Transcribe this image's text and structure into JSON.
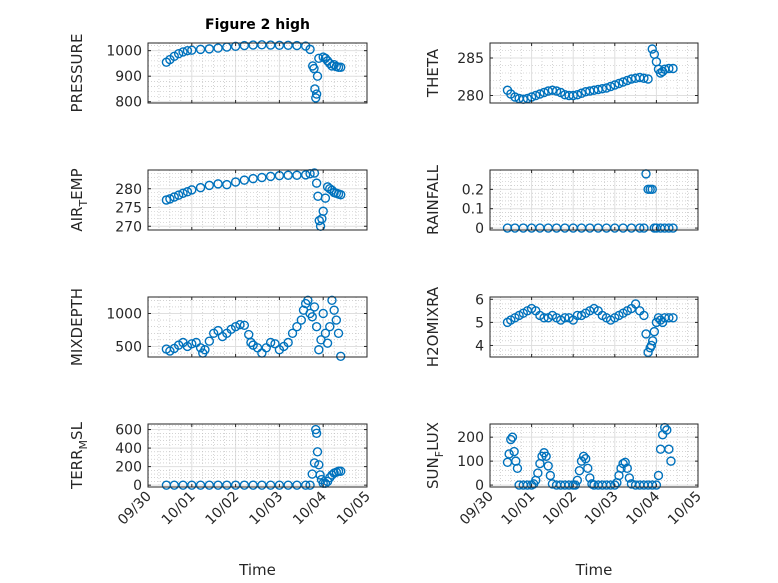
{
  "figure": {
    "title": "Figure 2 high"
  },
  "colors": {
    "series": "#0072BD",
    "axis": "#262626",
    "grid": "#dfdfdf"
  },
  "chart_data": [
    {
      "type": "scatter",
      "ylabel": "PRESSURE",
      "title": "Figure 2 high",
      "ylim": [
        795,
        1030
      ],
      "yticks": [
        800,
        900,
        1000
      ],
      "xlim": [
        0,
        5
      ],
      "xticks": [
        "09/30",
        "10/01",
        "10/02",
        "10/03",
        "10/04",
        "10/05"
      ],
      "show_xticklabels": false,
      "grid": true,
      "x": [
        0.42,
        0.5,
        0.6,
        0.7,
        0.8,
        0.9,
        1.0,
        1.2,
        1.4,
        1.6,
        1.8,
        2.0,
        2.2,
        2.4,
        2.6,
        2.8,
        3.0,
        3.2,
        3.4,
        3.6,
        3.7,
        3.76,
        3.79,
        3.81,
        3.83,
        3.85,
        3.87,
        3.9,
        4.0,
        4.05,
        4.1,
        4.15,
        4.2,
        4.25,
        4.3,
        4.35,
        4.4
      ],
      "y": [
        955,
        965,
        978,
        988,
        995,
        1000,
        1002,
        1005,
        1007,
        1010,
        1014,
        1017,
        1020,
        1022,
        1023,
        1022,
        1021,
        1021,
        1020,
        1018,
        1005,
        940,
        930,
        850,
        815,
        830,
        900,
        970,
        975,
        970,
        960,
        950,
        940,
        945,
        938,
        935,
        935
      ]
    },
    {
      "type": "scatter",
      "ylabel": "THETA",
      "ylim": [
        279,
        287
      ],
      "yticks": [
        280,
        285
      ],
      "xlim": [
        0,
        5
      ],
      "xticks": [
        "09/30",
        "10/01",
        "10/02",
        "10/03",
        "10/04",
        "10/05"
      ],
      "show_xticklabels": false,
      "grid": true,
      "x": [
        0.42,
        0.5,
        0.6,
        0.7,
        0.8,
        0.9,
        1.0,
        1.1,
        1.2,
        1.3,
        1.4,
        1.5,
        1.6,
        1.7,
        1.8,
        1.9,
        2.0,
        2.1,
        2.2,
        2.3,
        2.4,
        2.5,
        2.6,
        2.7,
        2.8,
        2.9,
        3.0,
        3.1,
        3.2,
        3.3,
        3.4,
        3.5,
        3.6,
        3.7,
        3.8,
        3.9,
        3.95,
        4.0,
        4.05,
        4.1,
        4.15,
        4.2,
        4.3,
        4.4
      ],
      "y": [
        280.7,
        280.2,
        279.8,
        279.6,
        279.5,
        279.6,
        279.8,
        280.0,
        280.2,
        280.4,
        280.6,
        280.7,
        280.6,
        280.4,
        280.1,
        280.0,
        280.0,
        280.1,
        280.3,
        280.5,
        280.6,
        280.7,
        280.8,
        280.9,
        281.0,
        281.2,
        281.4,
        281.6,
        281.8,
        282.0,
        282.2,
        282.3,
        282.4,
        282.3,
        282.2,
        286.2,
        285.5,
        284.5,
        283.5,
        283.0,
        283.2,
        283.5,
        283.6,
        283.6
      ]
    },
    {
      "type": "scatter",
      "ylabel": "AIR_TEMP",
      "ylim": [
        269,
        285
      ],
      "yticks": [
        270,
        275,
        280
      ],
      "xlim": [
        0,
        5
      ],
      "xticks": [
        "09/30",
        "10/01",
        "10/02",
        "10/03",
        "10/04",
        "10/05"
      ],
      "show_xticklabels": false,
      "grid": true,
      "x": [
        0.42,
        0.5,
        0.6,
        0.7,
        0.8,
        0.9,
        1.0,
        1.2,
        1.4,
        1.6,
        1.8,
        2.0,
        2.2,
        2.4,
        2.6,
        2.8,
        3.0,
        3.2,
        3.4,
        3.6,
        3.7,
        3.8,
        3.85,
        3.88,
        3.91,
        3.94,
        3.97,
        4.0,
        4.05,
        4.1,
        4.15,
        4.2,
        4.25,
        4.3,
        4.35,
        4.4
      ],
      "y": [
        277.0,
        277.3,
        277.8,
        278.3,
        278.8,
        279.2,
        279.7,
        280.3,
        280.9,
        281.3,
        281.1,
        281.8,
        282.3,
        282.7,
        283.0,
        283.3,
        283.5,
        283.6,
        283.6,
        283.7,
        284.0,
        284.2,
        281.5,
        278.0,
        271.5,
        270.0,
        272.0,
        274.0,
        277.5,
        280.5,
        280.0,
        279.6,
        279.0,
        278.8,
        278.6,
        278.4
      ]
    },
    {
      "type": "scatter",
      "ylabel": "RAINFALL",
      "ylim": [
        -0.01,
        0.3
      ],
      "yticks": [
        0,
        0.1,
        0.2
      ],
      "xlim": [
        0,
        5
      ],
      "xticks": [
        "09/30",
        "10/01",
        "10/02",
        "10/03",
        "10/04",
        "10/05"
      ],
      "show_xticklabels": false,
      "grid": true,
      "x": [
        0.42,
        0.6,
        0.8,
        1.0,
        1.2,
        1.4,
        1.6,
        1.8,
        2.0,
        2.2,
        2.4,
        2.6,
        2.8,
        3.0,
        3.2,
        3.4,
        3.6,
        3.7,
        3.75,
        3.8,
        3.85,
        3.9,
        3.95,
        4.0,
        4.1,
        4.2,
        4.3,
        4.4
      ],
      "y": [
        0,
        0,
        0,
        0,
        0,
        0,
        0,
        0,
        0,
        0,
        0,
        0,
        0,
        0,
        0,
        0,
        0,
        0,
        0.28,
        0.2,
        0.2,
        0.2,
        0,
        0,
        0,
        0,
        0,
        0
      ]
    },
    {
      "type": "scatter",
      "ylabel": "MIXDEPTH",
      "ylim": [
        340,
        1250
      ],
      "yticks": [
        500,
        1000
      ],
      "xlim": [
        0,
        5
      ],
      "xticks": [
        "09/30",
        "10/01",
        "10/02",
        "10/03",
        "10/04",
        "10/05"
      ],
      "show_xticklabels": false,
      "grid": true,
      "x": [
        0.42,
        0.5,
        0.6,
        0.7,
        0.8,
        0.9,
        1.0,
        1.1,
        1.2,
        1.25,
        1.3,
        1.4,
        1.5,
        1.6,
        1.7,
        1.8,
        1.9,
        2.0,
        2.1,
        2.2,
        2.3,
        2.35,
        2.4,
        2.5,
        2.6,
        2.7,
        2.8,
        2.9,
        3.0,
        3.1,
        3.2,
        3.3,
        3.4,
        3.5,
        3.55,
        3.6,
        3.65,
        3.7,
        3.75,
        3.8,
        3.85,
        3.9,
        3.95,
        4.0,
        4.05,
        4.1,
        4.15,
        4.2,
        4.25,
        4.3,
        4.35,
        4.4
      ],
      "y": [
        460,
        430,
        470,
        520,
        560,
        500,
        540,
        560,
        480,
        400,
        450,
        580,
        700,
        740,
        650,
        700,
        760,
        800,
        830,
        820,
        680,
        560,
        520,
        480,
        400,
        480,
        560,
        540,
        450,
        500,
        560,
        700,
        800,
        900,
        1050,
        1150,
        1200,
        1000,
        950,
        1100,
        800,
        450,
        600,
        1000,
        700,
        550,
        800,
        1200,
        1050,
        900,
        700,
        350
      ]
    },
    {
      "type": "scatter",
      "ylabel": "H2OMIXRA",
      "ylim": [
        3.5,
        6.1
      ],
      "yticks": [
        4,
        5,
        6
      ],
      "xlim": [
        0,
        5
      ],
      "xticks": [
        "09/30",
        "10/01",
        "10/02",
        "10/03",
        "10/04",
        "10/05"
      ],
      "show_xticklabels": false,
      "grid": true,
      "x": [
        0.42,
        0.5,
        0.6,
        0.7,
        0.8,
        0.9,
        1.0,
        1.1,
        1.2,
        1.3,
        1.4,
        1.5,
        1.6,
        1.7,
        1.8,
        1.9,
        2.0,
        2.1,
        2.2,
        2.3,
        2.4,
        2.5,
        2.6,
        2.7,
        2.8,
        2.9,
        3.0,
        3.1,
        3.2,
        3.3,
        3.4,
        3.5,
        3.6,
        3.7,
        3.75,
        3.8,
        3.85,
        3.88,
        3.91,
        3.95,
        4.0,
        4.05,
        4.1,
        4.15,
        4.2,
        4.3,
        4.4
      ],
      "y": [
        5.0,
        5.1,
        5.2,
        5.3,
        5.4,
        5.5,
        5.6,
        5.5,
        5.3,
        5.2,
        5.2,
        5.3,
        5.2,
        5.1,
        5.2,
        5.2,
        5.1,
        5.3,
        5.3,
        5.4,
        5.5,
        5.6,
        5.5,
        5.3,
        5.2,
        5.1,
        5.2,
        5.3,
        5.4,
        5.5,
        5.6,
        5.8,
        5.5,
        5.3,
        4.5,
        3.7,
        3.9,
        4.0,
        4.2,
        4.6,
        5.0,
        5.2,
        5.1,
        5.0,
        5.2,
        5.2,
        5.2
      ]
    },
    {
      "type": "scatter",
      "ylabel": "TERR_MSL",
      "ylim": [
        -20,
        660
      ],
      "yticks": [
        0,
        200,
        400,
        600
      ],
      "xlim": [
        0,
        5
      ],
      "xticks": [
        "09/30",
        "10/01",
        "10/02",
        "10/03",
        "10/04",
        "10/05"
      ],
      "show_xticklabels": true,
      "xlabel": "Time",
      "grid": true,
      "x": [
        0.42,
        0.6,
        0.8,
        1.0,
        1.2,
        1.4,
        1.6,
        1.8,
        2.0,
        2.2,
        2.4,
        2.6,
        2.8,
        3.0,
        3.2,
        3.4,
        3.6,
        3.7,
        3.75,
        3.8,
        3.83,
        3.85,
        3.87,
        3.9,
        3.93,
        3.96,
        4.0,
        4.05,
        4.1,
        4.15,
        4.2,
        4.25,
        4.3,
        4.35,
        4.4
      ],
      "y": [
        0,
        0,
        0,
        0,
        0,
        0,
        0,
        0,
        0,
        0,
        0,
        0,
        0,
        0,
        0,
        0,
        0,
        0,
        120,
        240,
        600,
        560,
        360,
        220,
        110,
        60,
        20,
        20,
        40,
        80,
        110,
        130,
        140,
        150,
        150
      ]
    },
    {
      "type": "scatter",
      "ylabel": "SUN_FLUX",
      "ylim": [
        -8,
        255
      ],
      "yticks": [
        0,
        100,
        200
      ],
      "xlim": [
        0,
        5
      ],
      "xticks": [
        "09/30",
        "10/01",
        "10/02",
        "10/03",
        "10/04",
        "10/05"
      ],
      "show_xticklabels": true,
      "xlabel": "Time",
      "grid": true,
      "x": [
        0.42,
        0.46,
        0.5,
        0.54,
        0.58,
        0.62,
        0.66,
        0.7,
        0.8,
        0.9,
        1.0,
        1.05,
        1.1,
        1.15,
        1.2,
        1.25,
        1.3,
        1.35,
        1.4,
        1.45,
        1.5,
        1.6,
        1.7,
        1.8,
        1.9,
        2.0,
        2.05,
        2.1,
        2.15,
        2.2,
        2.25,
        2.3,
        2.35,
        2.4,
        2.45,
        2.5,
        2.6,
        2.7,
        2.8,
        2.9,
        3.0,
        3.05,
        3.1,
        3.15,
        3.2,
        3.25,
        3.3,
        3.35,
        3.4,
        3.5,
        3.6,
        3.7,
        3.8,
        3.9,
        4.0,
        4.05,
        4.1,
        4.15,
        4.2,
        4.25,
        4.3,
        4.35
      ],
      "y": [
        95,
        130,
        190,
        200,
        140,
        100,
        70,
        0,
        0,
        0,
        0,
        5,
        20,
        50,
        90,
        120,
        135,
        120,
        80,
        40,
        5,
        0,
        0,
        0,
        0,
        0,
        0,
        20,
        60,
        100,
        120,
        110,
        70,
        30,
        5,
        0,
        0,
        0,
        0,
        0,
        0,
        10,
        40,
        70,
        90,
        95,
        70,
        30,
        5,
        0,
        0,
        0,
        0,
        0,
        0,
        40,
        150,
        210,
        240,
        230,
        150,
        100
      ]
    }
  ]
}
